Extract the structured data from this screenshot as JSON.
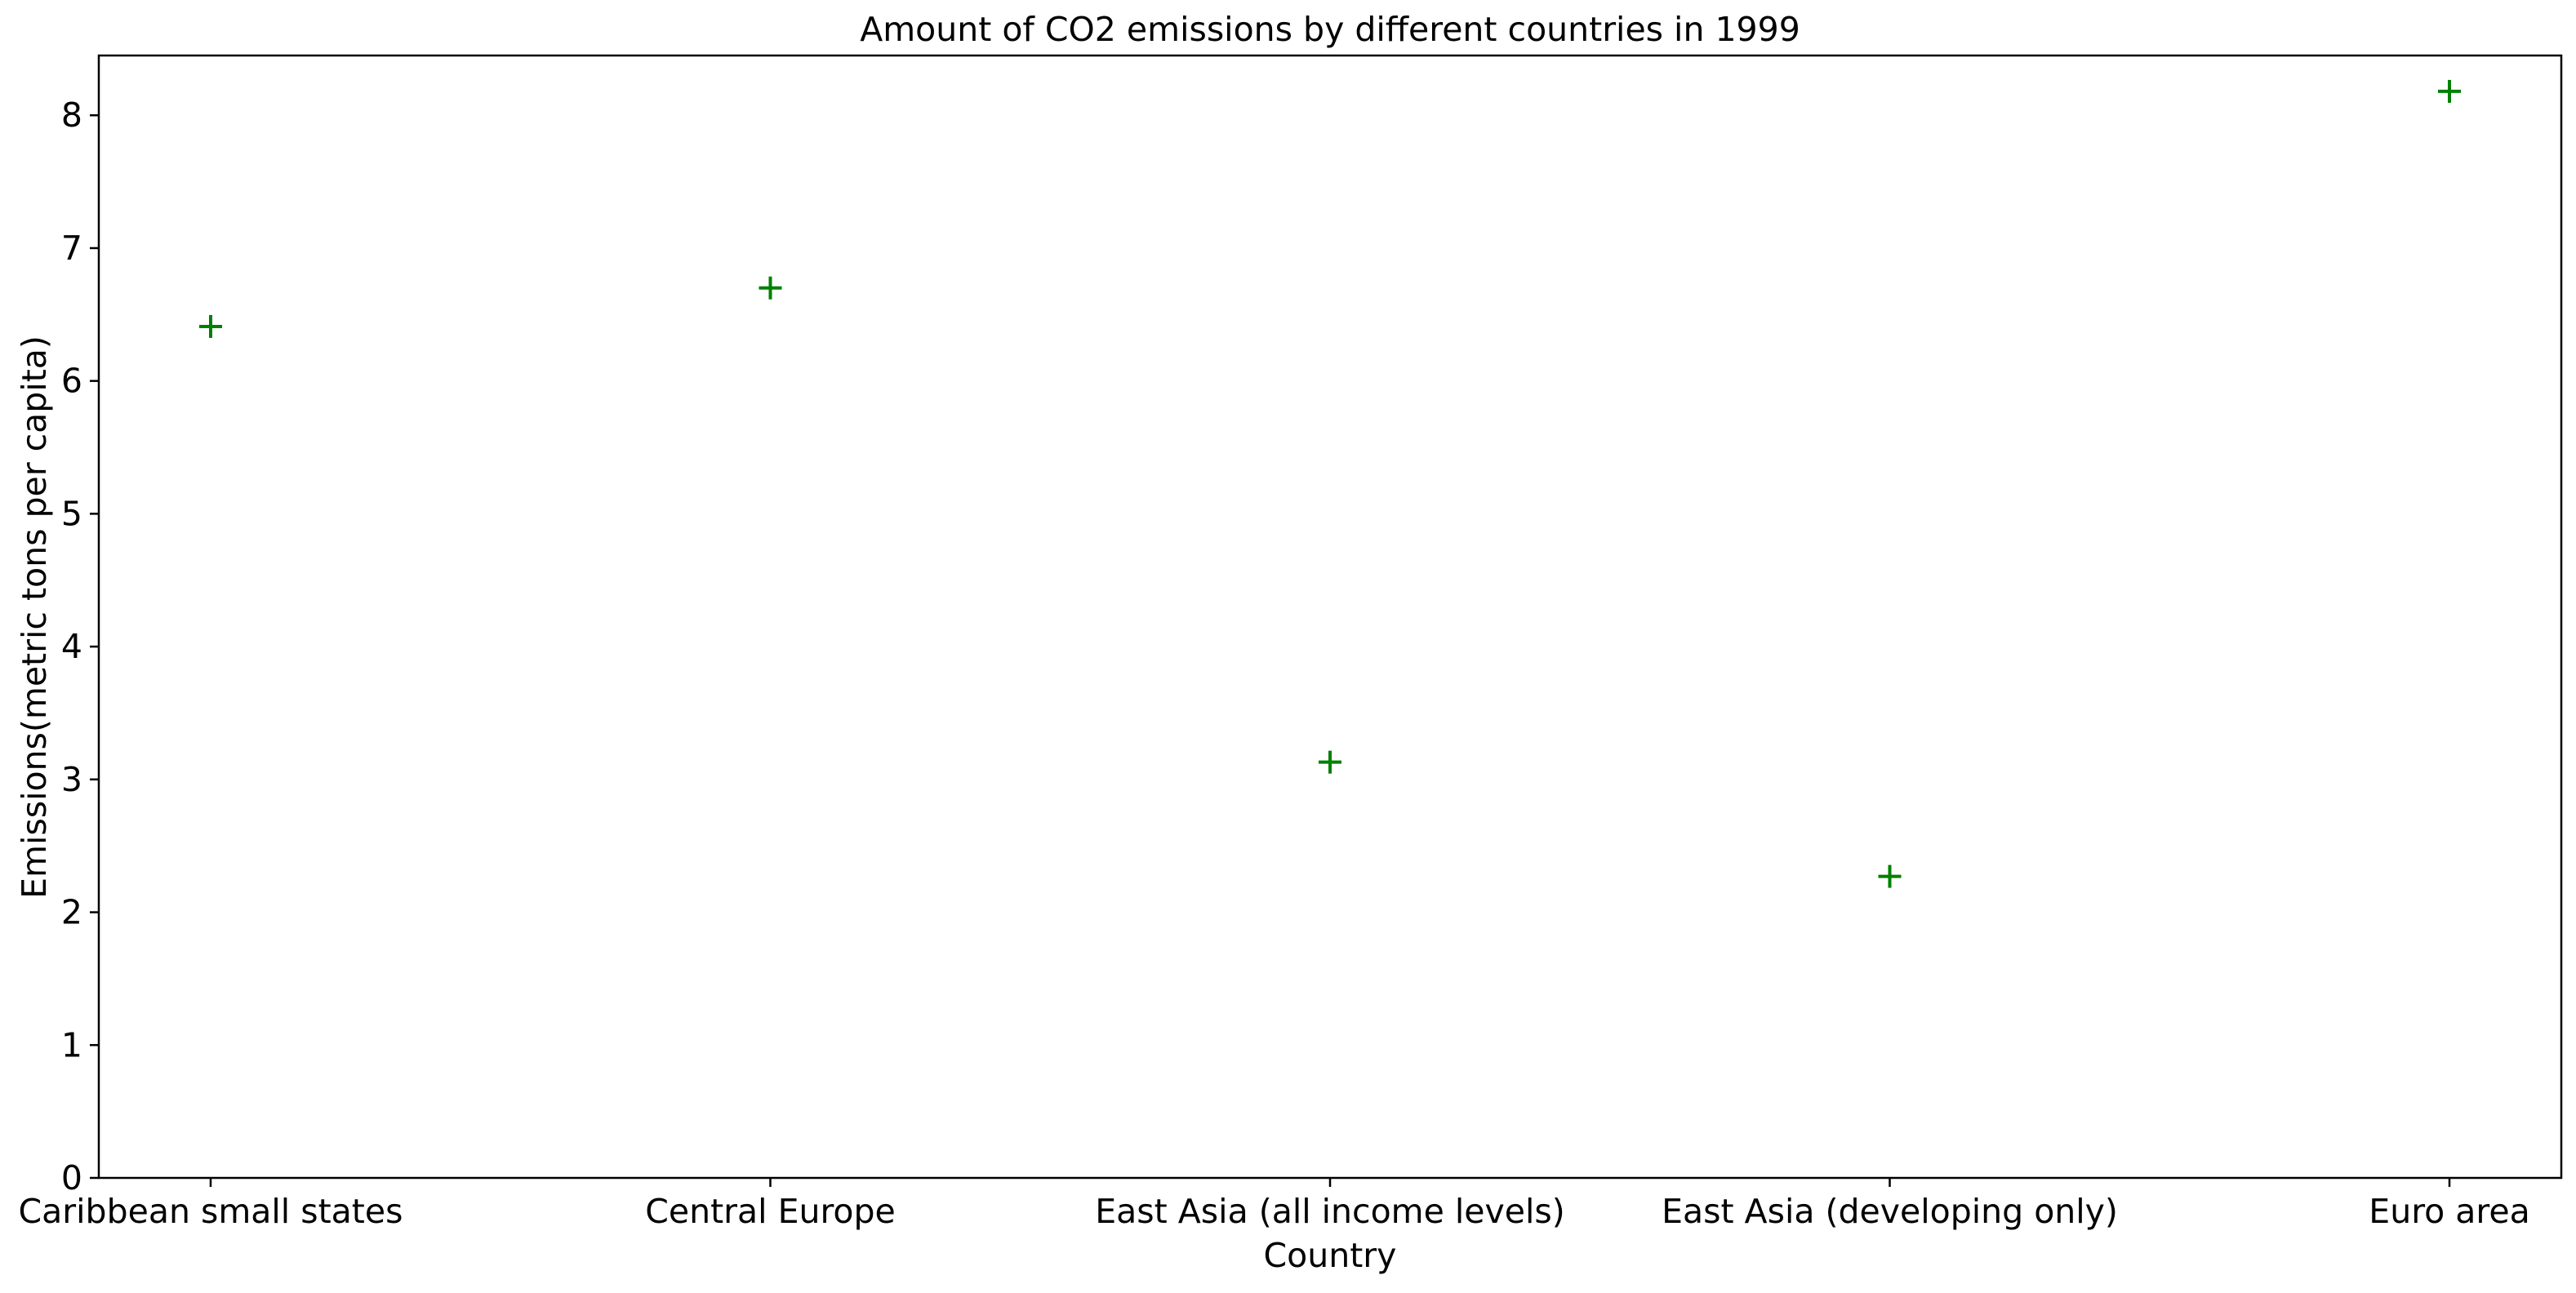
{
  "chart_data": {
    "type": "scatter",
    "title": "Amount of CO2 emissions by different countries in 1999",
    "xlabel": "Country",
    "ylabel": "Emissions(metric tons per capita)",
    "categories": [
      "Caribbean small states",
      "Central Europe",
      "East Asia (all income levels)",
      "East Asia (developing only)",
      "Euro area"
    ],
    "values": [
      6.41,
      6.7,
      3.13,
      2.27,
      8.18
    ],
    "ylim": [
      0,
      8.45
    ],
    "yticks": [
      0,
      1,
      2,
      3,
      4,
      5,
      6,
      7,
      8
    ],
    "marker": "plus",
    "color": "#008000",
    "grid": false
  }
}
